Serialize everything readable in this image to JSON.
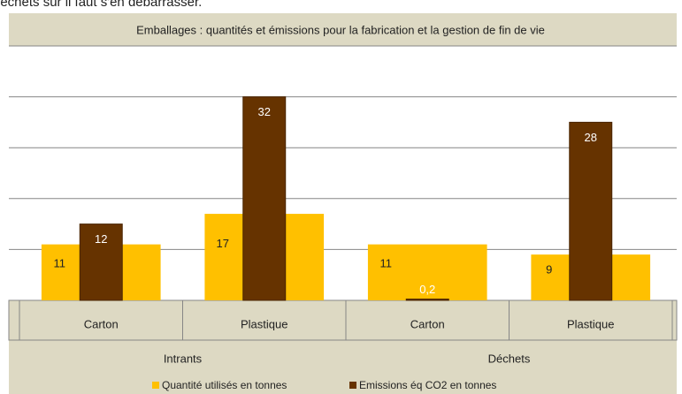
{
  "header_text": "déchets sur il faut s'en débarrasser.",
  "chart_data": {
    "type": "bar",
    "title": "Emballages : quantités et émissions pour la fabrication et la gestion de fin de vie",
    "categories": [
      "Carton",
      "Plastique",
      "Carton",
      "Plastique"
    ],
    "groups": [
      "Intrants",
      "Déchets"
    ],
    "series": [
      {
        "name": "Quantité utilisés en tonnes",
        "color": "#ffc000",
        "values": [
          11,
          17,
          11,
          9
        ]
      },
      {
        "name": "Emissions éq CO2 en tonnes",
        "color": "#663300",
        "axis": "y2",
        "values": [
          12,
          32,
          0.2,
          28
        ],
        "value_labels": [
          "12",
          "32",
          "0,2",
          "28"
        ]
      }
    ],
    "ylim": [
      0,
      50
    ],
    "yticks": [
      0,
      10,
      20,
      30,
      40,
      50
    ],
    "y2lim": [
      0,
      40
    ],
    "y2ticks": [
      0,
      8,
      16,
      24,
      32,
      40
    ],
    "grid": true,
    "legend": "bottom"
  }
}
